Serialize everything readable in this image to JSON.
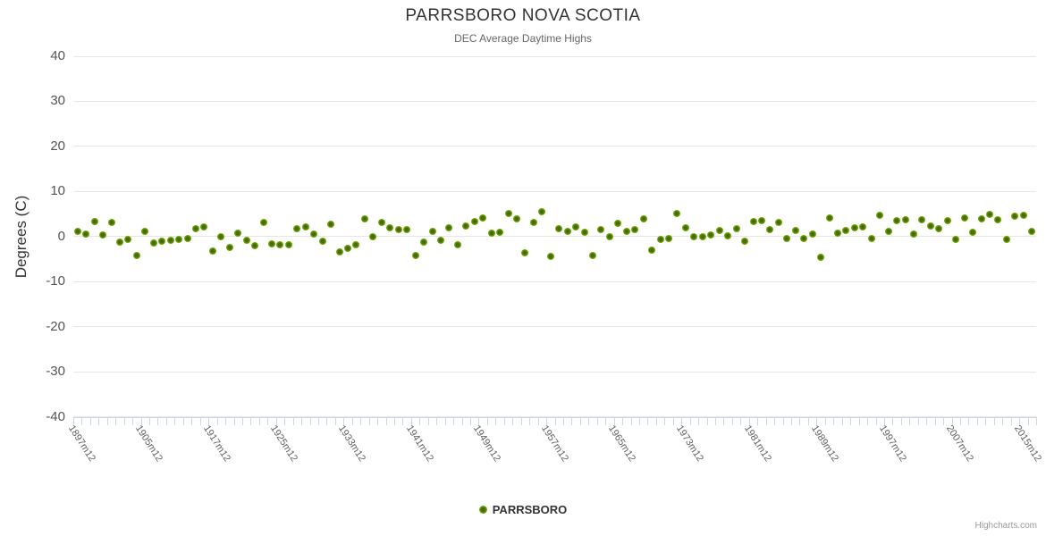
{
  "header": {
    "title": "PARRSBORO NOVA SCOTIA",
    "subtitle": "DEC Average Daytime Highs"
  },
  "legend": {
    "series_label": "PARRSBORO"
  },
  "credits": {
    "label": "Highcharts.com"
  },
  "colors": {
    "marker_green_outer": "#94ce33",
    "marker_green_mid": "#7fb80e",
    "marker_green_center": "#456a00",
    "gridline": "#e6e6e6",
    "axis_line": "#ccd6eb",
    "title_text": "#333333",
    "subtitle_text": "#666666",
    "tick_label_text": "#606060",
    "credits_text": "#999999"
  },
  "chart_data": {
    "type": "scatter",
    "title": "PARRSBORO NOVA SCOTIA",
    "subtitle": "DEC Average Daytime Highs",
    "xlabel": "",
    "ylabel": "Degrees (C)",
    "ylim": [
      -40,
      40
    ],
    "yticks": [
      40,
      30,
      20,
      10,
      0,
      -10,
      -20,
      -30,
      -40
    ],
    "grid": "horizontal-only",
    "legend_position": "bottom-center",
    "series_name": "PARRSBORO",
    "n_points": 114,
    "x_label_every": 8,
    "x_tick_labels": [
      "1897m12",
      "1905m12",
      "1917m12",
      "1925m12",
      "1933m12",
      "1941m12",
      "1949m12",
      "1957m12",
      "1965m12",
      "1973m12",
      "1981m12",
      "1989m12",
      "1997m12",
      "2007m12",
      "2015m12"
    ],
    "values": [
      1.1,
      0.5,
      3.3,
      0.4,
      3.2,
      -1.2,
      -0.6,
      -4.2,
      1.1,
      -1.4,
      -1.0,
      -0.9,
      -0.6,
      -0.4,
      1.7,
      2.1,
      -3.3,
      -0.1,
      -2.5,
      0.8,
      -0.9,
      -2.1,
      3.2,
      -1.7,
      -1.8,
      -1.8,
      1.8,
      2.1,
      0.6,
      -1.0,
      2.7,
      -3.4,
      -2.6,
      -1.8,
      3.9,
      -0.1,
      3.1,
      2.0,
      1.5,
      1.5,
      -4.3,
      -1.3,
      1.1,
      -0.9,
      2.0,
      -1.8,
      2.3,
      3.4,
      4.1,
      0.7,
      0.9,
      5.1,
      3.9,
      -3.6,
      3.2,
      5.6,
      -4.4,
      1.8,
      1.1,
      2.1,
      1.0,
      -4.3,
      1.5,
      -0.1,
      2.9,
      1.1,
      1.5,
      3.9,
      -3.0,
      -0.7,
      -0.5,
      5.2,
      1.9,
      0.0,
      -0.1,
      0.4,
      1.3,
      0.1,
      1.8,
      -1.1,
      3.3,
      3.5,
      1.5,
      3.1,
      -0.5,
      1.3,
      -0.4,
      0.5,
      -4.6,
      4.2,
      0.7,
      1.3,
      1.9,
      2.1,
      -0.5,
      4.8,
      1.2,
      3.5,
      3.8,
      0.5,
      3.7,
      2.3,
      1.7,
      3.6,
      -0.6,
      4.2,
      1.0,
      4.0,
      5.0,
      3.8,
      -0.7,
      4.6,
      4.7,
      1.1
    ]
  }
}
